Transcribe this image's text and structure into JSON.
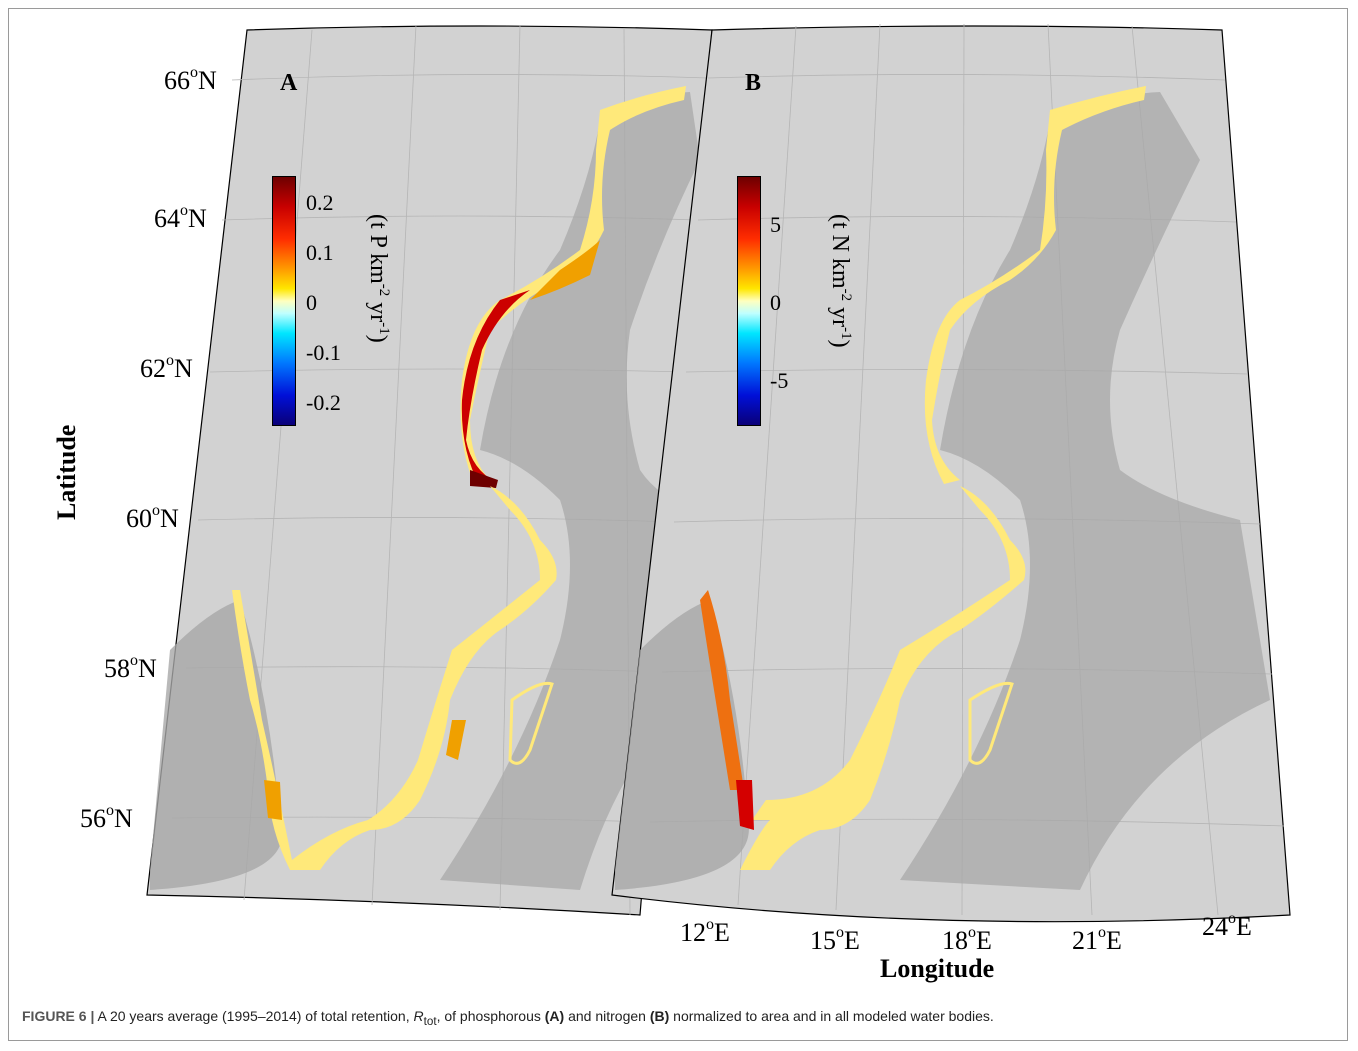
{
  "figure": {
    "panels": [
      {
        "label": "A",
        "colorbar": {
          "ticks": [
            "0.2",
            "0.1",
            "0",
            "-0.1",
            "-0.2"
          ],
          "unit_main": "(t P km",
          "unit_exp1": "-2",
          "unit_mid": " yr",
          "unit_exp2": "-1",
          "unit_end": ")",
          "range": [
            -0.25,
            0.25
          ]
        }
      },
      {
        "label": "B",
        "colorbar": {
          "ticks": [
            "5",
            "0",
            "-5"
          ],
          "unit_main": "(t N km",
          "unit_exp1": "-2",
          "unit_mid": " yr",
          "unit_exp2": "-1",
          "unit_end": ")",
          "range": [
            -8,
            8
          ]
        }
      }
    ],
    "lat_ticks": [
      {
        "deg": "66",
        "sup": "o",
        "hem": "N"
      },
      {
        "deg": "64",
        "sup": "o",
        "hem": "N"
      },
      {
        "deg": "62",
        "sup": "o",
        "hem": "N"
      },
      {
        "deg": "60",
        "sup": "o",
        "hem": "N"
      },
      {
        "deg": "58",
        "sup": "o",
        "hem": "N"
      },
      {
        "deg": "56",
        "sup": "o",
        "hem": "N"
      }
    ],
    "lon_ticks": [
      {
        "deg": "12",
        "sup": "o",
        "hem": "E"
      },
      {
        "deg": "15",
        "sup": "o",
        "hem": "E"
      },
      {
        "deg": "18",
        "sup": "o",
        "hem": "E"
      },
      {
        "deg": "21",
        "sup": "o",
        "hem": "E"
      },
      {
        "deg": "24",
        "sup": "o",
        "hem": "E"
      }
    ],
    "ylabel": "Latitude",
    "xlabel": "Longitude"
  },
  "caption": {
    "label": "FIGURE 6 |",
    "text_1": " A 20 years average (1995–2014) of total retention, ",
    "symbol": "R",
    "symbol_sub": "tot",
    "text_2": ", of phosphorous ",
    "ref_a": "(A)",
    "text_3": " and nitrogen ",
    "ref_b": "(B)",
    "text_4": " normalized to area and in all modeled water bodies."
  },
  "colors": {
    "background_map": "#d2d2d2",
    "land": "#a8a8a8",
    "retention_high": "#c80000",
    "retention_mid": "#ff9a00",
    "retention_low": "#ffe97a",
    "frame": "#000000"
  }
}
